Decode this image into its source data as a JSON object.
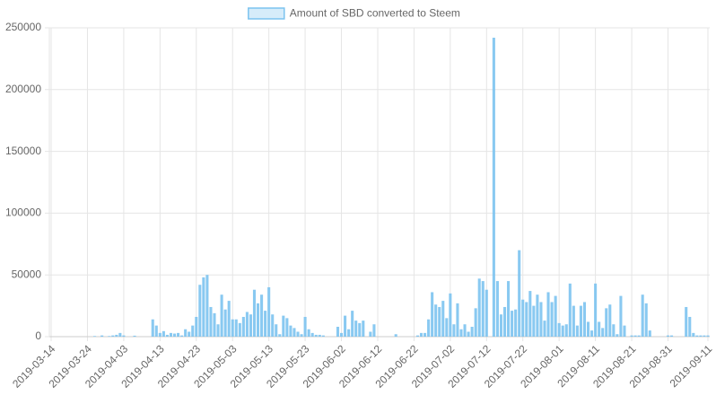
{
  "chart_data": {
    "type": "bar",
    "series": [
      {
        "name": "Amount of SBD converted to Steem",
        "color": "#7cc3ef",
        "legend_fill": "#d6ecfa",
        "values": [
          0,
          0,
          0,
          0,
          0,
          0,
          0,
          0,
          0,
          0,
          0,
          0,
          500,
          0,
          1000,
          0,
          500,
          1000,
          1500,
          3000,
          1000,
          0,
          0,
          800,
          0,
          0,
          0,
          0,
          14000,
          9000,
          3000,
          4500,
          1500,
          3000,
          2500,
          3000,
          1000,
          6000,
          4000,
          9000,
          16000,
          42000,
          48000,
          50000,
          24000,
          19000,
          10000,
          34000,
          22000,
          29000,
          14000,
          14000,
          11000,
          16000,
          20000,
          18000,
          38000,
          27000,
          34000,
          21000,
          40000,
          18000,
          10000,
          2000,
          17000,
          15000,
          9000,
          7000,
          4000,
          2000,
          16000,
          6000,
          3000,
          1500,
          1500,
          1000,
          0,
          0,
          0,
          8000,
          3000,
          17000,
          6000,
          21000,
          13000,
          11000,
          13000,
          0,
          4000,
          10000,
          0,
          0,
          0,
          0,
          0,
          2000,
          0,
          0,
          0,
          0,
          0,
          1000,
          3000,
          3000,
          14000,
          36000,
          26000,
          24000,
          29000,
          15000,
          35000,
          10000,
          27000,
          6000,
          10000,
          4000,
          8000,
          23000,
          47000,
          45000,
          38000,
          0,
          242000,
          45000,
          18000,
          24000,
          45000,
          21000,
          22000,
          70000,
          30000,
          28000,
          37000,
          25000,
          34000,
          28000,
          13000,
          36000,
          28000,
          33000,
          11000,
          9000,
          10000,
          43000,
          25000,
          9000,
          25000,
          28000,
          12000,
          5000,
          43000,
          12000,
          7000,
          23000,
          26000,
          10000,
          2000,
          33000,
          9000,
          0,
          1000,
          1000,
          1000,
          34000,
          27000,
          5000,
          0,
          0,
          0,
          0,
          1000,
          1000,
          0,
          0,
          0,
          24000,
          16000,
          3000,
          1000,
          1000,
          1000,
          1000
        ]
      }
    ],
    "categories": [
      "2019-03-14",
      null,
      null,
      null,
      null,
      null,
      null,
      null,
      null,
      null,
      "2019-03-24",
      null,
      null,
      null,
      null,
      null,
      null,
      null,
      null,
      null,
      "2019-04-03",
      null,
      null,
      null,
      null,
      null,
      null,
      null,
      null,
      null,
      "2019-04-13",
      null,
      null,
      null,
      null,
      null,
      null,
      null,
      null,
      null,
      "2019-04-23",
      null,
      null,
      null,
      null,
      null,
      null,
      null,
      null,
      null,
      "2019-05-03",
      null,
      null,
      null,
      null,
      null,
      null,
      null,
      null,
      null,
      "2019-05-13",
      null,
      null,
      null,
      null,
      null,
      null,
      null,
      null,
      null,
      "2019-05-23",
      null,
      null,
      null,
      null,
      null,
      null,
      null,
      null,
      null,
      "2019-06-02",
      null,
      null,
      null,
      null,
      null,
      null,
      null,
      null,
      null,
      "2019-06-12",
      null,
      null,
      null,
      null,
      null,
      null,
      null,
      null,
      null,
      "2019-06-22",
      null,
      null,
      null,
      null,
      null,
      null,
      null,
      null,
      null,
      "2019-07-02",
      null,
      null,
      null,
      null,
      null,
      null,
      null,
      null,
      null,
      "2019-07-12",
      null,
      null,
      null,
      null,
      null,
      null,
      null,
      null,
      null,
      "2019-07-22",
      null,
      null,
      null,
      null,
      null,
      null,
      null,
      null,
      null,
      "2019-08-01",
      null,
      null,
      null,
      null,
      null,
      null,
      null,
      null,
      null,
      "2019-08-11",
      null,
      null,
      null,
      null,
      null,
      null,
      null,
      null,
      null,
      "2019-08-21",
      null,
      null,
      null,
      null,
      null,
      null,
      null,
      null,
      null,
      "2019-08-31",
      null,
      null,
      null,
      null,
      null,
      null,
      null,
      null,
      null,
      null,
      "2019-09-11"
    ],
    "ylim": [
      0,
      250000
    ],
    "yticks": [
      0,
      50000,
      100000,
      150000,
      200000,
      250000
    ],
    "grid": true,
    "legend": "top"
  }
}
